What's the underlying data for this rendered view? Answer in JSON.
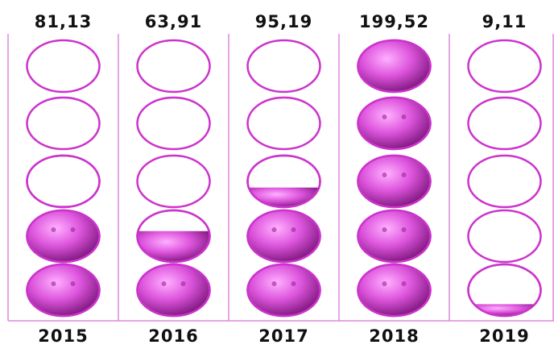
{
  "chart_data": {
    "type": "pictogram",
    "categories": [
      "2015",
      "2016",
      "2017",
      "2018",
      "2019"
    ],
    "values": [
      81.13,
      63.91,
      95.19,
      199.52,
      9.11
    ],
    "value_labels": [
      "81,13",
      "63,91",
      "95,19",
      "199,52",
      "9,11"
    ],
    "ylim": [
      0,
      200
    ],
    "color": "#cc33cc"
  }
}
